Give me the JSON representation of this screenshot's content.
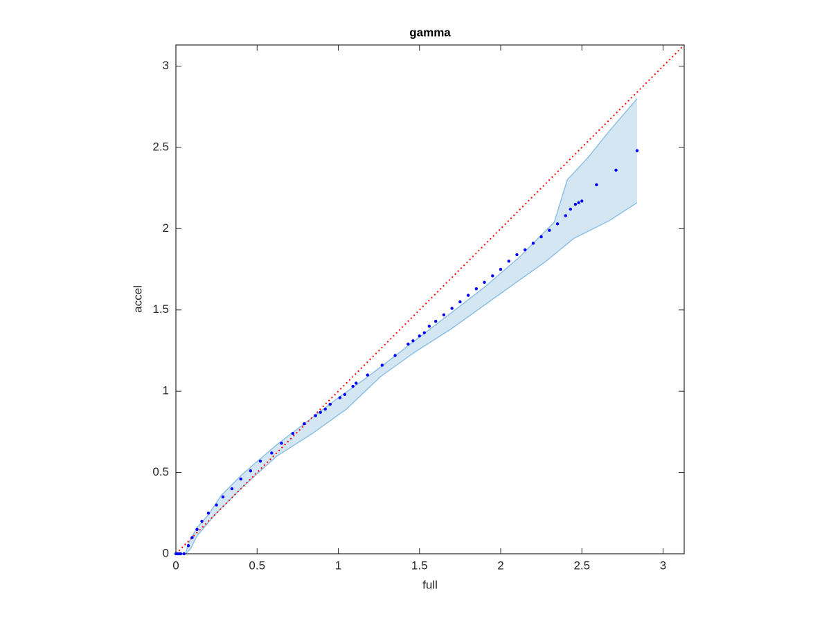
{
  "chart_data": {
    "type": "scatter",
    "title": "gamma",
    "x_label": "full",
    "y_label": "accel",
    "x": [
      0,
      0.01,
      0.02,
      0.03,
      0.05,
      0.077,
      0.1,
      0.13,
      0.16,
      0.2,
      0.25,
      0.29,
      0.345,
      0.4,
      0.46,
      0.52,
      0.59,
      0.65,
      0.72,
      0.79,
      0.86,
      0.89,
      0.92,
      0.95,
      1.01,
      1.04,
      1.09,
      1.11,
      1.18,
      1.27,
      1.35,
      1.43,
      1.46,
      1.5,
      1.53,
      1.56,
      1.6,
      1.65,
      1.7,
      1.75,
      1.8,
      1.85,
      1.9,
      1.95,
      2.0,
      2.05,
      2.1,
      2.15,
      2.2,
      2.25,
      2.3,
      2.35,
      2.4,
      2.43,
      2.46,
      2.48,
      2.5,
      2.59,
      2.71,
      2.84
    ],
    "values": [
      0,
      0,
      0,
      0,
      0,
      0.05,
      0.1,
      0.15,
      0.2,
      0.25,
      0.3,
      0.35,
      0.4,
      0.46,
      0.51,
      0.57,
      0.62,
      0.68,
      0.74,
      0.8,
      0.85,
      0.87,
      0.89,
      0.92,
      0.96,
      0.98,
      1.03,
      1.05,
      1.1,
      1.16,
      1.22,
      1.29,
      1.31,
      1.34,
      1.36,
      1.4,
      1.43,
      1.47,
      1.51,
      1.55,
      1.59,
      1.63,
      1.67,
      1.71,
      1.75,
      1.8,
      1.84,
      1.87,
      1.91,
      1.95,
      1.99,
      2.03,
      2.08,
      2.12,
      2.15,
      2.16,
      2.17,
      2.27,
      2.36,
      2.48
    ],
    "color": "#0000ff",
    "band": {
      "x_upper": [
        0.06,
        0.077,
        0.13,
        0.2,
        0.28,
        0.41,
        0.62,
        0.83,
        1.0,
        1.17,
        1.34,
        1.47,
        1.68,
        1.9,
        2.11,
        2.33,
        2.41,
        2.54,
        2.66,
        2.84
      ],
      "upper": [
        0,
        0.064,
        0.16,
        0.24,
        0.36,
        0.49,
        0.67,
        0.83,
        0.96,
        1.08,
        1.21,
        1.31,
        1.47,
        1.64,
        1.82,
        2.04,
        2.3,
        2.44,
        2.59,
        2.8
      ],
      "x_lower": [
        0.06,
        0.09,
        0.13,
        0.24,
        0.41,
        0.62,
        0.84,
        1.05,
        1.26,
        1.47,
        1.69,
        1.9,
        2.11,
        2.28,
        2.45,
        2.67,
        2.84
      ],
      "lower": [
        0,
        0.03,
        0.11,
        0.24,
        0.41,
        0.6,
        0.74,
        0.89,
        1.09,
        1.24,
        1.38,
        1.53,
        1.68,
        1.8,
        1.94,
        2.05,
        2.16
      ],
      "color": "#8ec0e4",
      "fill": "#d5e6f3"
    },
    "reference_line": {
      "color": "#ff0000",
      "style": "dotted"
    },
    "xlim": [
      0,
      3.13
    ],
    "ylim": [
      0,
      3.13
    ],
    "xticks": [
      0,
      0.5,
      1,
      1.5,
      2,
      2.5,
      3
    ],
    "yticks": [
      0,
      0.5,
      1,
      1.5,
      2,
      2.5,
      3
    ]
  }
}
